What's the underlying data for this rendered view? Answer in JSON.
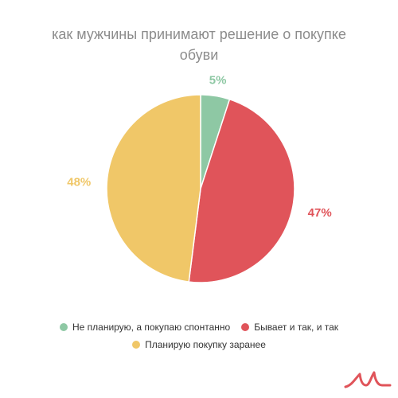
{
  "chart_data": {
    "type": "pie",
    "title": "как мужчины принимают решение о покупке обуви",
    "series": [
      {
        "name": "Не планирую, а покупаю спонтанно",
        "value": 5,
        "label": "5%",
        "color": "#8ec8a4"
      },
      {
        "name": "Бывает и так, и так",
        "value": 47,
        "label": "47%",
        "color": "#e0545a"
      },
      {
        "name": "Планирую покупку заранее",
        "value": 48,
        "label": "48%",
        "color": "#f0c768"
      }
    ],
    "legend_position": "bottom"
  },
  "colors": {
    "title": "#8c8c8c",
    "logo": "#e0545a"
  }
}
